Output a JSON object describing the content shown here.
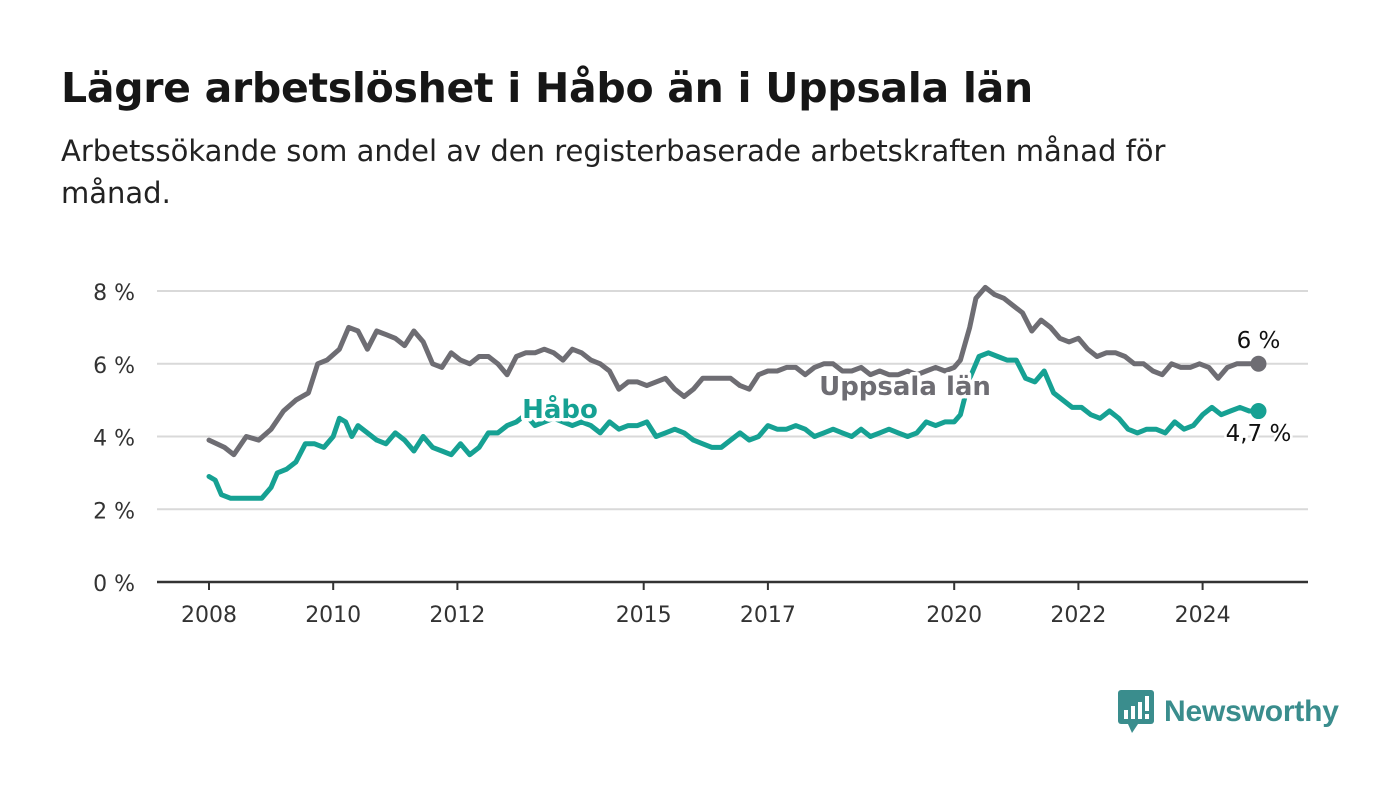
{
  "title": "Lägre arbetslöshet i Håbo än i Uppsala län",
  "subtitle": "Arbetssökande som andel av den registerbaserade arbetskraften månad för månad.",
  "brand": {
    "name": "Newsworthy",
    "color": "#3a8d8d"
  },
  "chart_data": {
    "type": "line",
    "x_ticks": [
      "2008",
      "2010",
      "2012",
      "2015",
      "2017",
      "2020",
      "2022",
      "2024"
    ],
    "y_ticks": [
      "0 %",
      "2 %",
      "4 %",
      "6 %",
      "8 %"
    ],
    "ylim": [
      0,
      8
    ],
    "xlim": [
      2008.0,
      2025.2
    ],
    "grid": true,
    "series": [
      {
        "name": "Uppsala län",
        "color": "#6e6d73",
        "end_label": "6 %",
        "points": [
          [
            2008.0,
            3.9
          ],
          [
            2008.25,
            3.7
          ],
          [
            2008.4,
            3.5
          ],
          [
            2008.6,
            4.0
          ],
          [
            2008.8,
            3.9
          ],
          [
            2009.0,
            4.2
          ],
          [
            2009.2,
            4.7
          ],
          [
            2009.4,
            5.0
          ],
          [
            2009.6,
            5.2
          ],
          [
            2009.75,
            6.0
          ],
          [
            2009.9,
            6.1
          ],
          [
            2010.1,
            6.4
          ],
          [
            2010.25,
            7.0
          ],
          [
            2010.4,
            6.9
          ],
          [
            2010.55,
            6.4
          ],
          [
            2010.7,
            6.9
          ],
          [
            2010.85,
            6.8
          ],
          [
            2011.0,
            6.7
          ],
          [
            2011.15,
            6.5
          ],
          [
            2011.3,
            6.9
          ],
          [
            2011.45,
            6.6
          ],
          [
            2011.6,
            6.0
          ],
          [
            2011.75,
            5.9
          ],
          [
            2011.9,
            6.3
          ],
          [
            2012.05,
            6.1
          ],
          [
            2012.2,
            6.0
          ],
          [
            2012.35,
            6.2
          ],
          [
            2012.5,
            6.2
          ],
          [
            2012.65,
            6.0
          ],
          [
            2012.8,
            5.7
          ],
          [
            2012.95,
            6.2
          ],
          [
            2013.1,
            6.3
          ],
          [
            2013.25,
            6.3
          ],
          [
            2013.4,
            6.4
          ],
          [
            2013.55,
            6.3
          ],
          [
            2013.7,
            6.1
          ],
          [
            2013.85,
            6.4
          ],
          [
            2014.0,
            6.3
          ],
          [
            2014.15,
            6.1
          ],
          [
            2014.3,
            6.0
          ],
          [
            2014.45,
            5.8
          ],
          [
            2014.6,
            5.3
          ],
          [
            2014.75,
            5.5
          ],
          [
            2014.9,
            5.5
          ],
          [
            2015.05,
            5.4
          ],
          [
            2015.2,
            5.5
          ],
          [
            2015.35,
            5.6
          ],
          [
            2015.5,
            5.3
          ],
          [
            2015.65,
            5.1
          ],
          [
            2015.8,
            5.3
          ],
          [
            2015.95,
            5.6
          ],
          [
            2016.1,
            5.6
          ],
          [
            2016.25,
            5.6
          ],
          [
            2016.4,
            5.6
          ],
          [
            2016.55,
            5.4
          ],
          [
            2016.7,
            5.3
          ],
          [
            2016.85,
            5.7
          ],
          [
            2017.0,
            5.8
          ],
          [
            2017.15,
            5.8
          ],
          [
            2017.3,
            5.9
          ],
          [
            2017.45,
            5.9
          ],
          [
            2017.6,
            5.7
          ],
          [
            2017.75,
            5.9
          ],
          [
            2017.9,
            6.0
          ],
          [
            2018.05,
            6.0
          ],
          [
            2018.2,
            5.8
          ],
          [
            2018.35,
            5.8
          ],
          [
            2018.5,
            5.9
          ],
          [
            2018.65,
            5.7
          ],
          [
            2018.8,
            5.8
          ],
          [
            2018.95,
            5.7
          ],
          [
            2019.1,
            5.7
          ],
          [
            2019.25,
            5.8
          ],
          [
            2019.4,
            5.7
          ],
          [
            2019.55,
            5.8
          ],
          [
            2019.7,
            5.9
          ],
          [
            2019.85,
            5.8
          ],
          [
            2020.0,
            5.9
          ],
          [
            2020.1,
            6.1
          ],
          [
            2020.25,
            7.0
          ],
          [
            2020.35,
            7.8
          ],
          [
            2020.5,
            8.1
          ],
          [
            2020.65,
            7.9
          ],
          [
            2020.8,
            7.8
          ],
          [
            2020.95,
            7.6
          ],
          [
            2021.1,
            7.4
          ],
          [
            2021.25,
            6.9
          ],
          [
            2021.4,
            7.2
          ],
          [
            2021.55,
            7.0
          ],
          [
            2021.7,
            6.7
          ],
          [
            2021.85,
            6.6
          ],
          [
            2022.0,
            6.7
          ],
          [
            2022.15,
            6.4
          ],
          [
            2022.3,
            6.2
          ],
          [
            2022.45,
            6.3
          ],
          [
            2022.6,
            6.3
          ],
          [
            2022.75,
            6.2
          ],
          [
            2022.9,
            6.0
          ],
          [
            2023.05,
            6.0
          ],
          [
            2023.2,
            5.8
          ],
          [
            2023.35,
            5.7
          ],
          [
            2023.5,
            6.0
          ],
          [
            2023.65,
            5.9
          ],
          [
            2023.8,
            5.9
          ],
          [
            2023.95,
            6.0
          ],
          [
            2024.1,
            5.9
          ],
          [
            2024.25,
            5.6
          ],
          [
            2024.4,
            5.9
          ],
          [
            2024.55,
            6.0
          ],
          [
            2024.7,
            6.0
          ],
          [
            2024.9,
            6.0
          ]
        ]
      },
      {
        "name": "Håbo",
        "color": "#16a193",
        "end_label": "4,7 %",
        "points": [
          [
            2008.0,
            2.9
          ],
          [
            2008.1,
            2.8
          ],
          [
            2008.2,
            2.4
          ],
          [
            2008.35,
            2.3
          ],
          [
            2008.6,
            2.3
          ],
          [
            2008.85,
            2.3
          ],
          [
            2009.0,
            2.6
          ],
          [
            2009.1,
            3.0
          ],
          [
            2009.25,
            3.1
          ],
          [
            2009.4,
            3.3
          ],
          [
            2009.55,
            3.8
          ],
          [
            2009.7,
            3.8
          ],
          [
            2009.85,
            3.7
          ],
          [
            2010.0,
            4.0
          ],
          [
            2010.1,
            4.5
          ],
          [
            2010.2,
            4.4
          ],
          [
            2010.3,
            4.0
          ],
          [
            2010.4,
            4.3
          ],
          [
            2010.55,
            4.1
          ],
          [
            2010.7,
            3.9
          ],
          [
            2010.85,
            3.8
          ],
          [
            2011.0,
            4.1
          ],
          [
            2011.15,
            3.9
          ],
          [
            2011.3,
            3.6
          ],
          [
            2011.45,
            4.0
          ],
          [
            2011.6,
            3.7
          ],
          [
            2011.75,
            3.6
          ],
          [
            2011.9,
            3.5
          ],
          [
            2012.05,
            3.8
          ],
          [
            2012.2,
            3.5
          ],
          [
            2012.35,
            3.7
          ],
          [
            2012.5,
            4.1
          ],
          [
            2012.65,
            4.1
          ],
          [
            2012.8,
            4.3
          ],
          [
            2012.95,
            4.4
          ],
          [
            2013.1,
            4.6
          ],
          [
            2013.25,
            4.3
          ],
          [
            2013.4,
            4.4
          ],
          [
            2013.55,
            4.5
          ],
          [
            2013.7,
            4.4
          ],
          [
            2013.85,
            4.3
          ],
          [
            2014.0,
            4.4
          ],
          [
            2014.15,
            4.3
          ],
          [
            2014.3,
            4.1
          ],
          [
            2014.45,
            4.4
          ],
          [
            2014.6,
            4.2
          ],
          [
            2014.75,
            4.3
          ],
          [
            2014.9,
            4.3
          ],
          [
            2015.05,
            4.4
          ],
          [
            2015.2,
            4.0
          ],
          [
            2015.35,
            4.1
          ],
          [
            2015.5,
            4.2
          ],
          [
            2015.65,
            4.1
          ],
          [
            2015.8,
            3.9
          ],
          [
            2015.95,
            3.8
          ],
          [
            2016.1,
            3.7
          ],
          [
            2016.25,
            3.7
          ],
          [
            2016.4,
            3.9
          ],
          [
            2016.55,
            4.1
          ],
          [
            2016.7,
            3.9
          ],
          [
            2016.85,
            4.0
          ],
          [
            2017.0,
            4.3
          ],
          [
            2017.15,
            4.2
          ],
          [
            2017.3,
            4.2
          ],
          [
            2017.45,
            4.3
          ],
          [
            2017.6,
            4.2
          ],
          [
            2017.75,
            4.0
          ],
          [
            2017.9,
            4.1
          ],
          [
            2018.05,
            4.2
          ],
          [
            2018.2,
            4.1
          ],
          [
            2018.35,
            4.0
          ],
          [
            2018.5,
            4.2
          ],
          [
            2018.65,
            4.0
          ],
          [
            2018.8,
            4.1
          ],
          [
            2018.95,
            4.2
          ],
          [
            2019.1,
            4.1
          ],
          [
            2019.25,
            4.0
          ],
          [
            2019.4,
            4.1
          ],
          [
            2019.55,
            4.4
          ],
          [
            2019.7,
            4.3
          ],
          [
            2019.85,
            4.4
          ],
          [
            2020.0,
            4.4
          ],
          [
            2020.1,
            4.6
          ],
          [
            2020.25,
            5.6
          ],
          [
            2020.4,
            6.2
          ],
          [
            2020.55,
            6.3
          ],
          [
            2020.7,
            6.2
          ],
          [
            2020.85,
            6.1
          ],
          [
            2021.0,
            6.1
          ],
          [
            2021.15,
            5.6
          ],
          [
            2021.3,
            5.5
          ],
          [
            2021.45,
            5.8
          ],
          [
            2021.6,
            5.2
          ],
          [
            2021.75,
            5.0
          ],
          [
            2021.9,
            4.8
          ],
          [
            2022.05,
            4.8
          ],
          [
            2022.2,
            4.6
          ],
          [
            2022.35,
            4.5
          ],
          [
            2022.5,
            4.7
          ],
          [
            2022.65,
            4.5
          ],
          [
            2022.8,
            4.2
          ],
          [
            2022.95,
            4.1
          ],
          [
            2023.1,
            4.2
          ],
          [
            2023.25,
            4.2
          ],
          [
            2023.4,
            4.1
          ],
          [
            2023.55,
            4.4
          ],
          [
            2023.7,
            4.2
          ],
          [
            2023.85,
            4.3
          ],
          [
            2024.0,
            4.6
          ],
          [
            2024.15,
            4.8
          ],
          [
            2024.3,
            4.6
          ],
          [
            2024.45,
            4.7
          ],
          [
            2024.6,
            4.8
          ],
          [
            2024.75,
            4.7
          ],
          [
            2024.9,
            4.7
          ]
        ]
      }
    ]
  }
}
